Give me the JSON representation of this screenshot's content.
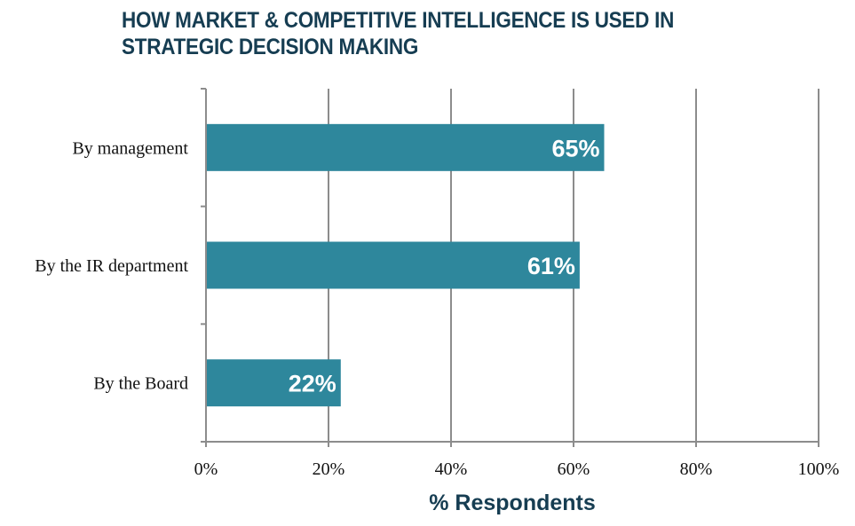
{
  "title": {
    "line1": "HOW MARKET & COMPETITIVE INTELLIGENCE IS USED IN",
    "line2": "STRATEGIC DECISION MAKING"
  },
  "colors": {
    "bar": "#2e879c",
    "title": "#163d52",
    "grid": "#8c8c8c"
  },
  "chart_data": {
    "type": "bar",
    "orientation": "horizontal",
    "title": "HOW MARKET & COMPETITIVE INTELLIGENCE IS USED IN STRATEGIC DECISION MAKING",
    "categories": [
      "By management",
      "By the IR department",
      "By the Board"
    ],
    "values": [
      65,
      61,
      22
    ],
    "data_labels": [
      "65%",
      "61%",
      "22%"
    ],
    "xlabel": "% Respondents",
    "ylabel": "",
    "xlim": [
      0,
      100
    ],
    "xticks": [
      0,
      20,
      40,
      60,
      80,
      100
    ],
    "xtick_labels": [
      "0%",
      "20%",
      "40%",
      "60%",
      "80%",
      "100%"
    ],
    "grid": "vertical",
    "legend": "none"
  }
}
